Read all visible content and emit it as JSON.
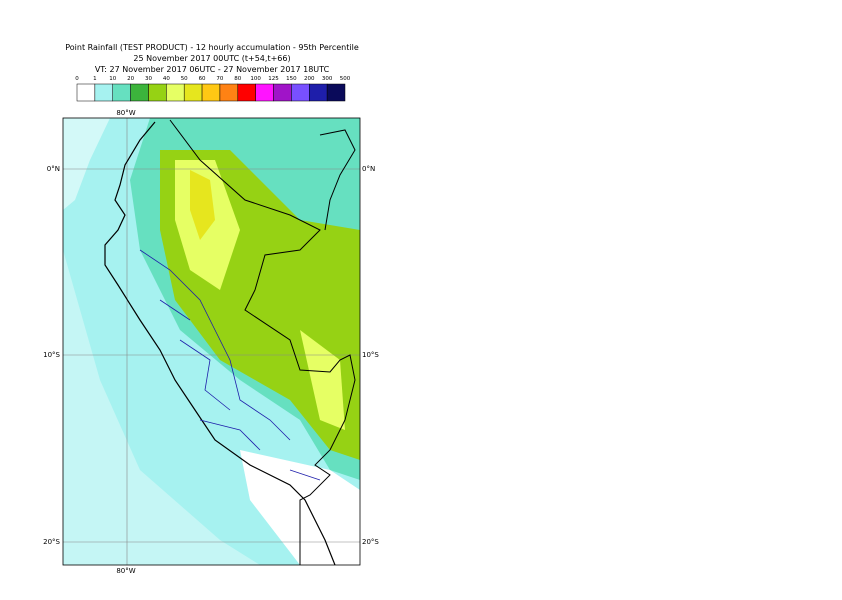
{
  "header": {
    "lines": [
      "Point Rainfall (TEST PRODUCT) - 12 hourly accumulation - 95th Percentile",
      "25 November 2017 00UTC (t+54,t+66)",
      "VT: 27 November 2017 06UTC - 27 November 2017 18UTC"
    ]
  },
  "legend": {
    "labels": [
      "0",
      "1",
      "10",
      "20",
      "30",
      "40",
      "50",
      "60",
      "70",
      "80",
      "100",
      "125",
      "150",
      "200",
      "300",
      "500"
    ],
    "colors": [
      "#ffffff",
      "#a6f2f0",
      "#66e0c0",
      "#3cb43c",
      "#96d214",
      "#e6ff64",
      "#e6e61e",
      "#ffc814",
      "#ff8214",
      "#ff0000",
      "#ff14ff",
      "#a014c8",
      "#7850ff",
      "#1e1eaa",
      "#0a0a5a"
    ]
  },
  "map": {
    "top_label": "80°W",
    "bottom_label": "80°W",
    "lat_labels": [
      "0°N",
      "10°S",
      "20°S"
    ]
  }
}
